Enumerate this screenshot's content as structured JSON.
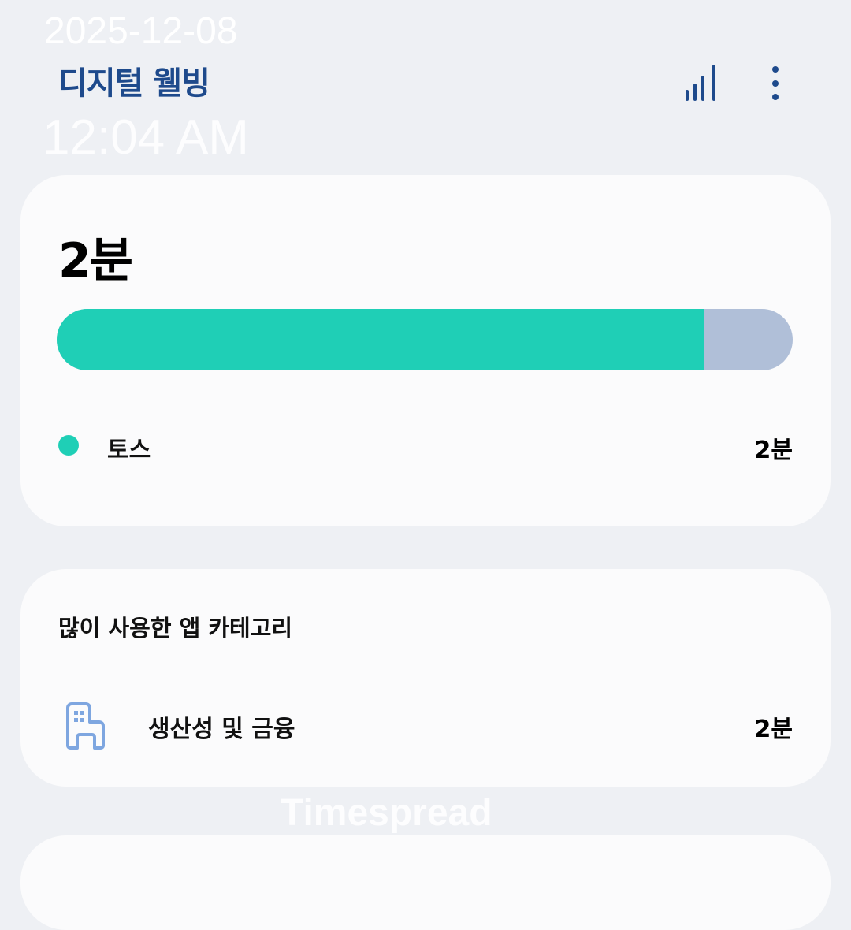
{
  "header": {
    "title": "디지털 웰빙",
    "chart_icon": "bar-chart-icon",
    "menu_icon": "more-vert-icon"
  },
  "overlay": {
    "date": "2025-12-08",
    "time": "12:04 AM",
    "watermark": "Timespread"
  },
  "usage_card": {
    "total": "2분",
    "progress_fraction": 0.88,
    "colors": {
      "app": "#1fcfb6",
      "rest": "#b0bfd8"
    },
    "apps": [
      {
        "name": "토스",
        "time": "2분"
      }
    ]
  },
  "category_card": {
    "title": "많이 사용한 앱 카테고리",
    "items": [
      {
        "icon": "building-icon",
        "name": "생산성 및 금융",
        "time": "2분"
      }
    ]
  }
}
